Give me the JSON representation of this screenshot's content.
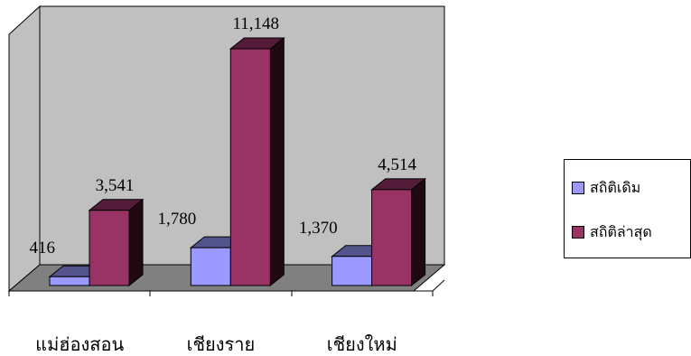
{
  "chart_data": {
    "type": "bar",
    "style": "3d-clustered",
    "categories": [
      "แม่ฮ่องสอน",
      "เชียงราย",
      "เชียงใหม่"
    ],
    "series": [
      {
        "name": "สถิติเดิม",
        "values": [
          416,
          1780,
          1370
        ],
        "labels": [
          "416",
          "1,780",
          "1,370"
        ],
        "color": "#9999ff"
      },
      {
        "name": "สถิติล่าสุด",
        "values": [
          3541,
          11148,
          4514
        ],
        "labels": [
          "3,541",
          "11,148",
          "4,514"
        ],
        "color": "#993366"
      }
    ],
    "ylim": [
      0,
      12000
    ],
    "grid": false,
    "legend": "right",
    "wall_color": "#c0c0c0",
    "floor_color": "#808080"
  }
}
